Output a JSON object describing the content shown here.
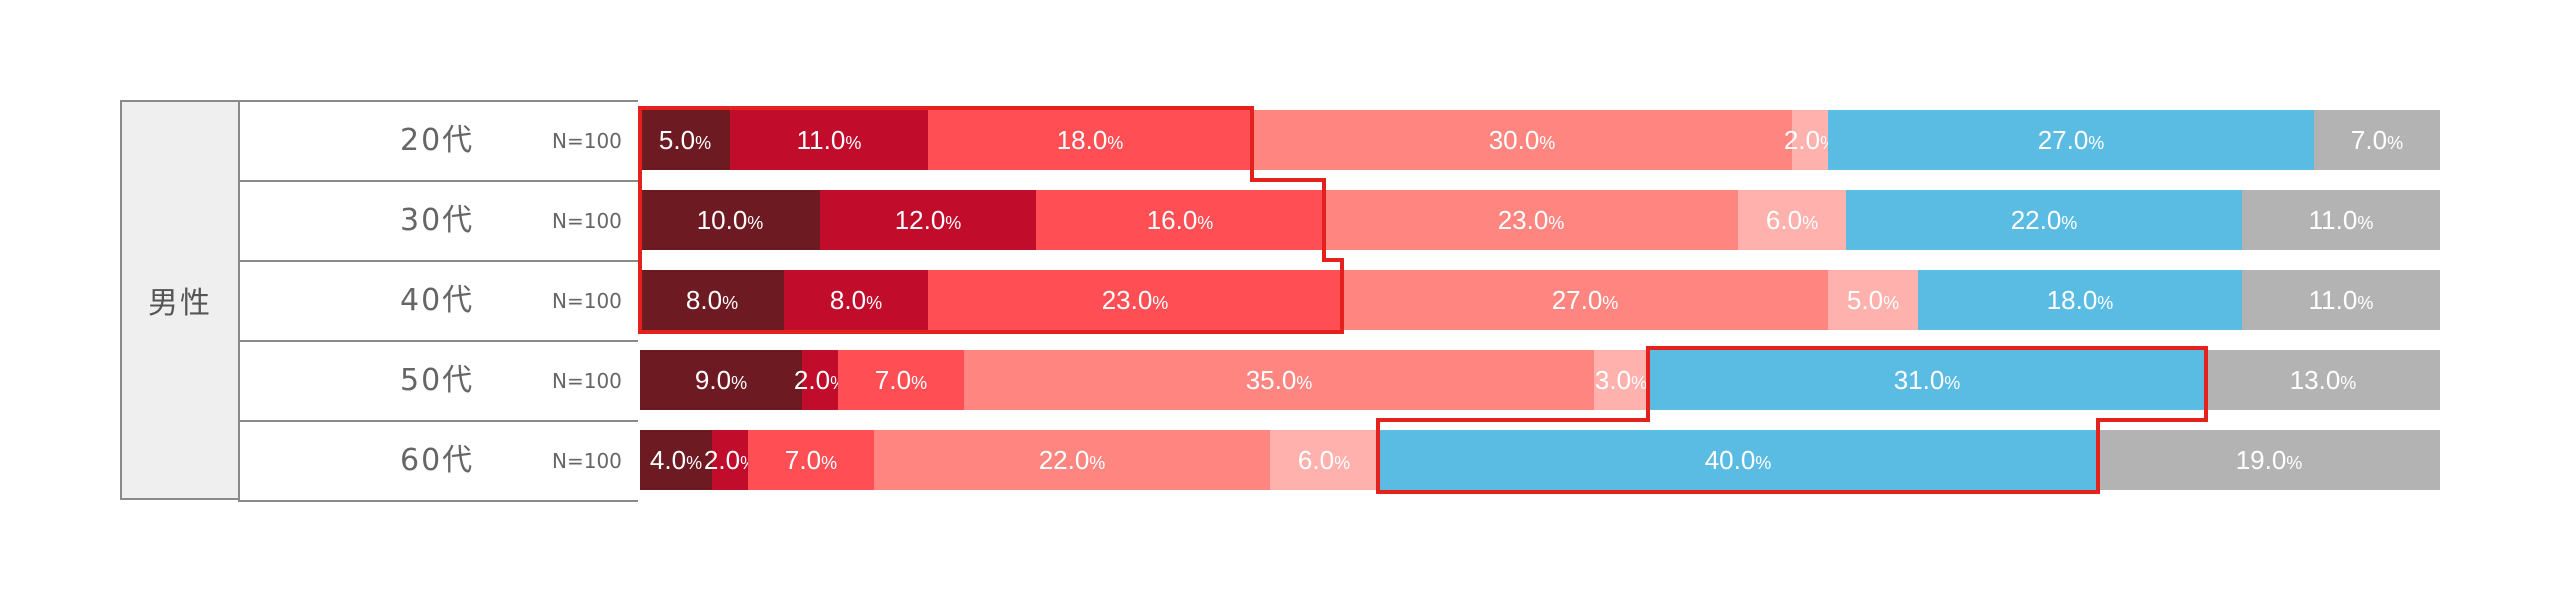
{
  "chart_data": {
    "type": "bar",
    "orientation": "horizontal",
    "stacked": true,
    "group": "男性",
    "rows": [
      {
        "label": "20代",
        "n": "N=100",
        "values": [
          5.0,
          11.0,
          18.0,
          30.0,
          2.0,
          27.0,
          7.0
        ]
      },
      {
        "label": "30代",
        "n": "N=100",
        "values": [
          10.0,
          12.0,
          16.0,
          23.0,
          6.0,
          22.0,
          11.0
        ]
      },
      {
        "label": "40代",
        "n": "N=100",
        "values": [
          8.0,
          8.0,
          23.0,
          27.0,
          5.0,
          18.0,
          11.0
        ]
      },
      {
        "label": "50代",
        "n": "N=100",
        "values": [
          9.0,
          2.0,
          7.0,
          35.0,
          3.0,
          31.0,
          13.0
        ]
      },
      {
        "label": "60代",
        "n": "N=100",
        "values": [
          4.0,
          2.0,
          7.0,
          22.0,
          6.0,
          40.0,
          19.0
        ]
      }
    ],
    "segment_colors": [
      "#6e1a23",
      "#c20c2c",
      "#ff4f55",
      "#ff8680",
      "#ffb2ad",
      "#5bbce3",
      "#b3b3b3"
    ],
    "highlight_color": "#e4211c",
    "highlights": [
      {
        "rows": [
          0,
          1,
          2
        ],
        "segments": [
          0,
          1,
          2
        ]
      },
      {
        "rows": [
          3,
          4
        ],
        "segments": [
          5
        ]
      }
    ],
    "xlim": [
      0,
      100
    ],
    "value_suffix": "%"
  }
}
